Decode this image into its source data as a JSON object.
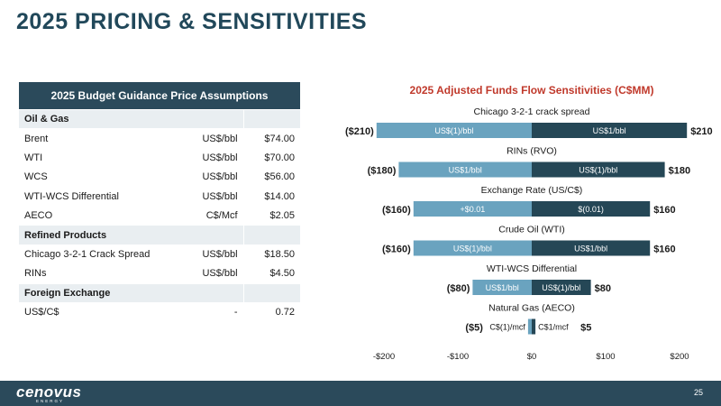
{
  "page": {
    "title": "2025 PRICING & SENSITIVITIES",
    "page_number": "25"
  },
  "brand": {
    "logo": "cenovus",
    "logo_sub": "ENERGY"
  },
  "colors": {
    "primary": "#2b4a5b",
    "light_bar": "#6aa3bf",
    "dark_bar": "#254756",
    "accent_red": "#c0392b"
  },
  "table": {
    "header": "2025 Budget Guidance Price Assumptions",
    "sections": [
      {
        "name": "Oil & Gas",
        "rows": [
          {
            "label": "Brent",
            "unit": "US$/bbl",
            "value": "$74.00"
          },
          {
            "label": "WTI",
            "unit": "US$/bbl",
            "value": "$70.00"
          },
          {
            "label": "WCS",
            "unit": "US$/bbl",
            "value": "$56.00"
          },
          {
            "label": "WTI-WCS Differential",
            "unit": "US$/bbl",
            "value": "$14.00"
          },
          {
            "label": "AECO",
            "unit": "C$/Mcf",
            "value": "$2.05"
          }
        ]
      },
      {
        "name": "Refined Products",
        "rows": [
          {
            "label": "Chicago 3-2-1 Crack Spread",
            "unit": "US$/bbl",
            "value": "$18.50"
          },
          {
            "label": "RINs",
            "unit": "US$/bbl",
            "value": "$4.50"
          }
        ]
      },
      {
        "name": "Foreign Exchange",
        "rows": [
          {
            "label": "US$/C$",
            "unit": "-",
            "value": "0.72"
          }
        ]
      }
    ]
  },
  "chart_data": {
    "type": "bar",
    "orientation": "horizontal",
    "title": "2025 Adjusted Funds Flow Sensitivities (C$MM)",
    "xlim": [
      -200,
      200
    ],
    "x_ticks": [
      "-$200",
      "-$100",
      "$0",
      "$100",
      "$200"
    ],
    "x_tick_values": [
      -200,
      -100,
      0,
      100,
      200
    ],
    "categories": [
      {
        "name": "Chicago 3-2-1 crack spread",
        "neg": -210,
        "pos": 210,
        "neg_label": "($210)",
        "pos_label": "$210",
        "neg_inner": "US$(1)/bbl",
        "pos_inner": "US$1/bbl"
      },
      {
        "name": "RINs (RVO)",
        "neg": -180,
        "pos": 180,
        "neg_label": "($180)",
        "pos_label": "$180",
        "neg_inner": "US$1/bbl",
        "pos_inner": "US$(1)/bbl"
      },
      {
        "name": "Exchange Rate (US/C$)",
        "neg": -160,
        "pos": 160,
        "neg_label": "($160)",
        "pos_label": "$160",
        "neg_inner": "+$0.01",
        "pos_inner": "$(0.01)"
      },
      {
        "name": "Crude Oil (WTI)",
        "neg": -160,
        "pos": 160,
        "neg_label": "($160)",
        "pos_label": "$160",
        "neg_inner": "US$(1)/bbl",
        "pos_inner": "US$1/bbl"
      },
      {
        "name": "WTI-WCS Differential",
        "neg": -80,
        "pos": 80,
        "neg_label": "($80)",
        "pos_label": "$80",
        "neg_inner": "US$1/bbl",
        "pos_inner": "US$(1)/bbl"
      },
      {
        "name": "Natural Gas (AECO)",
        "neg": -5,
        "pos": 5,
        "neg_label": "($5)",
        "pos_label": "$5",
        "neg_inner": "C$(1)/mcf",
        "pos_inner": "C$1/mcf"
      }
    ],
    "grid": false,
    "legend": "none"
  }
}
